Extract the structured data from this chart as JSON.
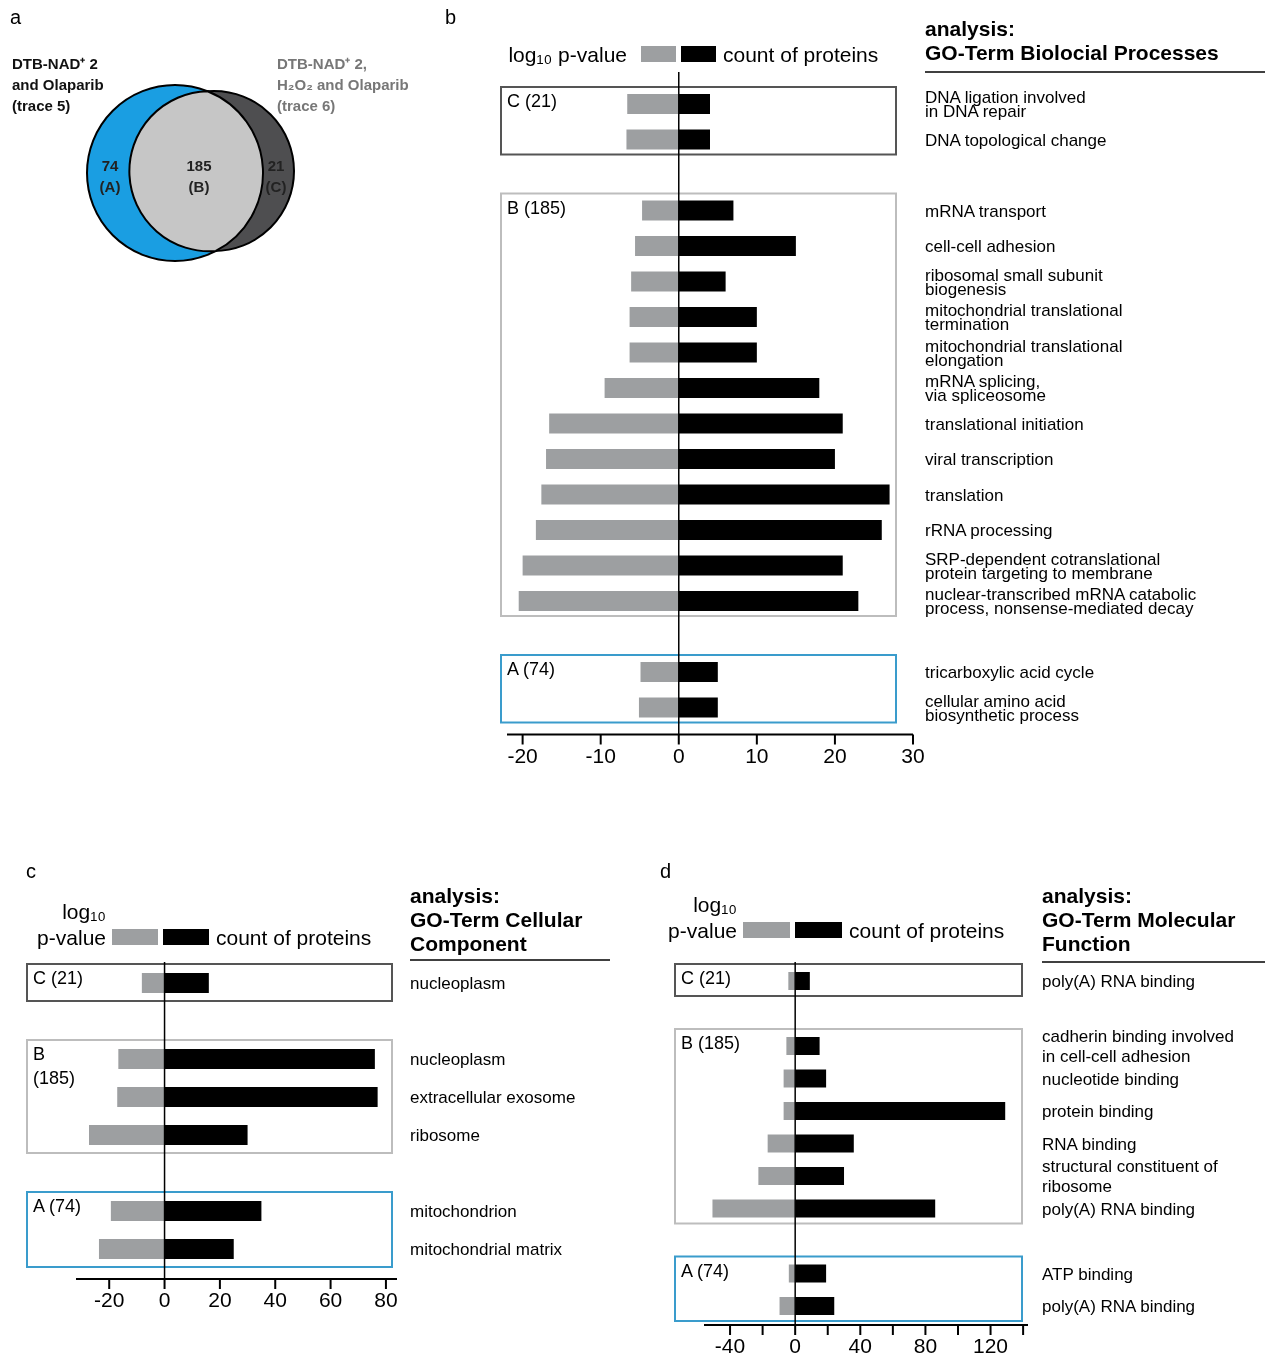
{
  "chart_data": [
    {
      "type": "other",
      "annotations": [
        "a",
        "DTB-NAD⁺ 2\nand Olaparib\n(trace 5)",
        "DTB-NAD⁺ 2,\nH₂O₂ and Olaparib\n(trace 6)"
      ],
      "categories": [
        "(A)",
        "(B)",
        "(C)"
      ],
      "values": [
        74,
        185,
        21
      ],
      "data_labels": true,
      "colors": [
        "#1a9ee2",
        "#c6c6c6",
        "#4e4e50"
      ]
    },
    {
      "type": "bar",
      "orientation": "horizontal",
      "stacked": true,
      "title": "analysis:\nGO-Term Biolocial Processes",
      "annotations": [
        "b",
        "C (21)",
        "B (185)",
        "A (74)"
      ],
      "legend": "top",
      "categories": [
        "DNA ligation involved\nin DNA repair",
        "DNA topological change",
        null,
        "mRNA transport",
        "cell-cell adhesion",
        "ribosomal small subunit\nbiogenesis",
        "mitochondrial translational\ntermination",
        "mitochondrial translational\nelongation",
        "mRNA splicing,\nvia spliceosome",
        "translational initiation",
        "viral transcription",
        "translation",
        "rRNA processing",
        "SRP-dependent cotranslational\nprotein targeting to membrane",
        "nuclear-transcribed mRNA catabolic\nprocess, nonsense-mediated decay",
        null,
        "tricarboxylic acid cycle",
        "cellular amino acid\nbiosynthetic process"
      ],
      "series": [
        {
          "name": "log₁₀ p-value",
          "color": "#9d9fa1",
          "values": [
            -6.6,
            -6.7,
            null,
            -4.7,
            -5.6,
            -6.1,
            -6.3,
            -6.3,
            -9.5,
            -16.6,
            -17,
            -17.6,
            -18.3,
            -20,
            -20.5,
            null,
            -4.9,
            -5.1
          ]
        },
        {
          "name": "count of proteins",
          "color": "#000000",
          "values": [
            4,
            4,
            null,
            7,
            15,
            6,
            10,
            10,
            18,
            21,
            20,
            27,
            26,
            21,
            23,
            null,
            5,
            5
          ]
        }
      ],
      "xlim": [
        -22,
        30
      ],
      "xticks": [
        -20,
        -10,
        0,
        10,
        20,
        30
      ]
    },
    {
      "type": "bar",
      "orientation": "horizontal",
      "stacked": true,
      "title": "analysis:\nGO-Term Cellular\nComponent",
      "annotations": [
        "c",
        "C (21)",
        "B\n(185)",
        "A (74)"
      ],
      "legend": "top",
      "categories": [
        "nucleoplasm",
        null,
        "nucleoplasm",
        "extracellular exosome",
        "ribosome",
        null,
        "mitochondrion",
        "mitochondrial matrix"
      ],
      "series": [
        {
          "name": "log₁₀ p-value",
          "color": "#9d9fa1",
          "values": [
            -8.2,
            null,
            -16.7,
            -17.1,
            -27.3,
            null,
            -19.4,
            -23.7
          ]
        },
        {
          "name": "count of proteins",
          "color": "#000000",
          "values": [
            16,
            null,
            76,
            77,
            30,
            null,
            35,
            25
          ]
        }
      ],
      "xlim": [
        -32,
        84
      ],
      "xticks": [
        -20,
        0,
        20,
        40,
        60,
        80
      ]
    },
    {
      "type": "bar",
      "orientation": "horizontal",
      "stacked": true,
      "title": "analysis:\nGO-Term Molecular\nFunction",
      "annotations": [
        "d",
        "C (21)",
        "B (185)",
        "A (74)"
      ],
      "legend": "top",
      "categories": [
        "poly(A) RNA binding",
        null,
        "cadherin binding involved\nin cell-cell adhesion",
        "nucleotide binding",
        "protein binding",
        "RNA binding",
        "structural constituent of\nribosome",
        "poly(A) RNA binding",
        null,
        "ATP binding",
        "poly(A) RNA binding"
      ],
      "series": [
        {
          "name": "log₁₀ p-value",
          "color": "#9d9fa1",
          "values": [
            -4.2,
            null,
            -5.4,
            -7.1,
            -7.1,
            -16.9,
            -22.6,
            -50.8,
            null,
            -3.9,
            -9.6
          ]
        },
        {
          "name": "count of proteins",
          "color": "#000000",
          "values": [
            9,
            null,
            15,
            19,
            129,
            36,
            30,
            86,
            null,
            19,
            24
          ]
        }
      ],
      "xlim": [
        -56,
        143
      ],
      "xticks": [
        -40,
        {
          "value": -20,
          "label": null
        },
        0,
        {
          "value": 20,
          "label": null
        },
        40,
        {
          "value": 60,
          "label": null
        },
        80,
        {
          "value": 100,
          "label": null
        },
        120,
        {
          "value": 140,
          "label": null
        }
      ]
    }
  ]
}
